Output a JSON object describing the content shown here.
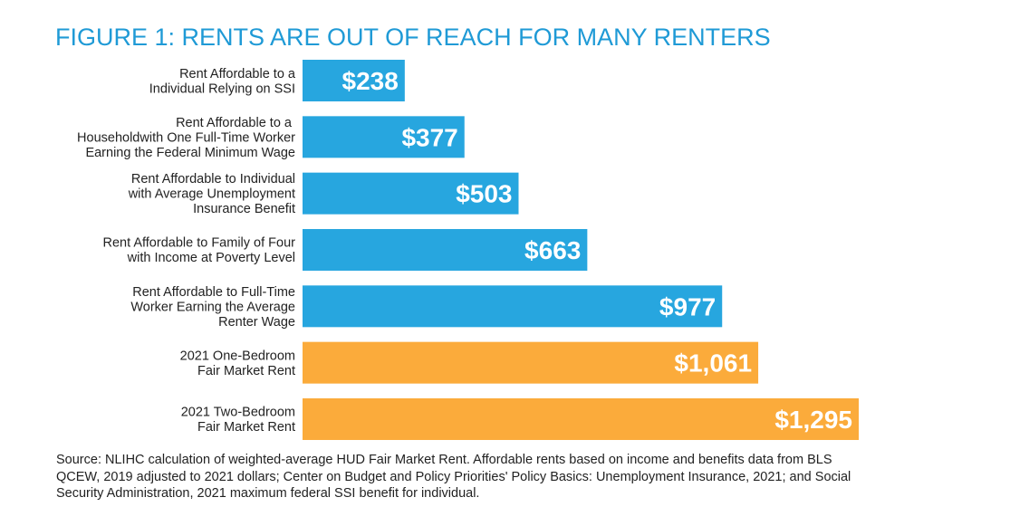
{
  "title": "FIGURE 1: RENTS ARE OUT OF REACH FOR MANY RENTERS",
  "source": "Source: NLIHC calculation of weighted-average HUD Fair Market Rent. Affordable rents based on income and benefits data from BLS QCEW, 2019 adjusted to 2021 dollars; Center on Budget and Policy Priorities' Policy Basics: Unemployment Insurance, 2021; and Social Security Administration, 2021 maximum federal SSI benefit for individual.",
  "colors": {
    "title": "#1f9ad6",
    "affordable": "#27a6df",
    "market": "#fbab3b"
  },
  "chart_data": {
    "type": "bar",
    "orientation": "horizontal",
    "title": "FIGURE 1: RENTS ARE OUT OF REACH FOR MANY RENTERS",
    "xlabel": "",
    "ylabel": "",
    "xlim": [
      0,
      1295
    ],
    "grid": false,
    "categories": [
      [
        "Rent Affordable to a",
        "Individual Relying on SSI"
      ],
      [
        "Rent Affordable to a ",
        "Householdwith One Full-Time Worker",
        "Earning the Federal Minimum Wage"
      ],
      [
        "Rent Affordable to Individual",
        "with Average Unemployment",
        "Insurance Benefit"
      ],
      [
        "Rent Affordable to Family of Four",
        "with Income at Poverty Level"
      ],
      [
        "Rent Affordable to Full-Time",
        "Worker Earning the Average",
        "Renter Wage"
      ],
      [
        "2021 One-Bedroom",
        "Fair Market Rent"
      ],
      [
        "2021 Two-Bedroom",
        "Fair Market Rent"
      ]
    ],
    "values": [
      238,
      377,
      503,
      663,
      977,
      1061,
      1295
    ],
    "value_labels": [
      "$238",
      "$377",
      "$503",
      "$663",
      "$977",
      "$1,061",
      "$1,295"
    ],
    "bar_colors": [
      "#27a6df",
      "#27a6df",
      "#27a6df",
      "#27a6df",
      "#27a6df",
      "#fbab3b",
      "#fbab3b"
    ]
  }
}
